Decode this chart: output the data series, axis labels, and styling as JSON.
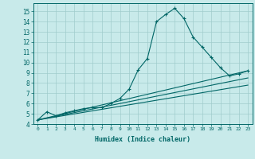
{
  "xlabel": "Humidex (Indice chaleur)",
  "background_color": "#c8eaea",
  "grid_color": "#a0cccc",
  "line_color": "#006666",
  "xlim": [
    -0.5,
    23.5
  ],
  "ylim": [
    4,
    15.8
  ],
  "xticks": [
    0,
    1,
    2,
    3,
    4,
    5,
    6,
    7,
    8,
    9,
    10,
    11,
    12,
    13,
    14,
    15,
    16,
    17,
    18,
    19,
    20,
    21,
    22,
    23
  ],
  "yticks": [
    4,
    5,
    6,
    7,
    8,
    9,
    10,
    11,
    12,
    13,
    14,
    15
  ],
  "series_main": {
    "x": [
      0,
      1,
      2,
      3,
      4,
      5,
      6,
      7,
      8,
      9,
      10,
      11,
      12,
      13,
      14,
      15,
      16,
      17,
      18,
      19,
      20,
      21,
      22,
      23
    ],
    "y": [
      4.4,
      5.2,
      4.8,
      5.1,
      5.3,
      5.5,
      5.6,
      5.6,
      6.0,
      6.5,
      7.4,
      9.3,
      10.4,
      14.0,
      14.7,
      15.3,
      14.3,
      12.5,
      11.5,
      10.5,
      9.5,
      8.7,
      8.9,
      9.2
    ]
  },
  "series_lines": [
    {
      "x": [
        0,
        23
      ],
      "y": [
        4.4,
        9.2
      ]
    },
    {
      "x": [
        0,
        23
      ],
      "y": [
        4.4,
        8.5
      ]
    },
    {
      "x": [
        0,
        23
      ],
      "y": [
        4.4,
        7.8
      ]
    }
  ]
}
